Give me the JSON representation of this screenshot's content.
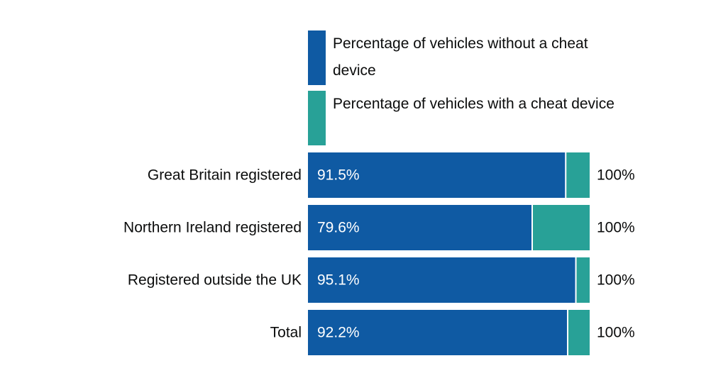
{
  "chart_data": {
    "type": "stacked-bar-horizontal",
    "categories": [
      "Great Britain registered",
      "Northern Ireland registered",
      "Registered outside the UK",
      "Total"
    ],
    "series": [
      {
        "name": "Percentage of vehicles without a cheat device",
        "color": "#0f5aa3",
        "values": [
          91.5,
          79.6,
          95.1,
          92.2
        ],
        "value_labels": [
          "91.5%",
          "79.6%",
          "95.1%",
          "92.2%"
        ]
      },
      {
        "name": "Percentage of vehicles with a cheat device",
        "color": "#28a197",
        "values": [
          8.5,
          20.4,
          4.9,
          7.8
        ]
      }
    ],
    "totals": {
      "values": [
        100,
        100,
        100,
        100
      ],
      "value_labels": [
        "100%",
        "100%",
        "100%",
        "100%"
      ]
    },
    "xlim": [
      0,
      100
    ]
  }
}
